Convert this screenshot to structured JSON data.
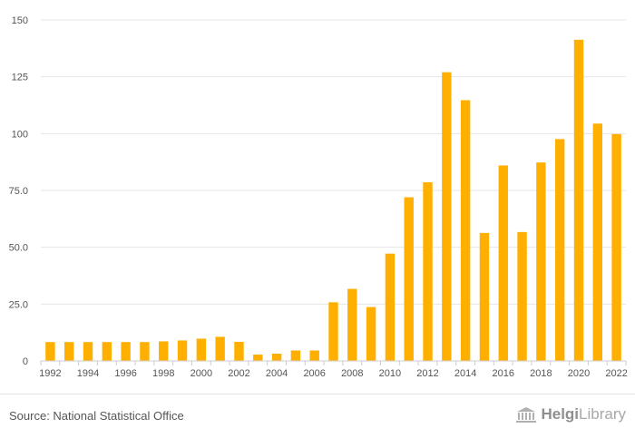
{
  "chart_data": {
    "type": "bar",
    "title": "",
    "xlabel": "",
    "ylabel": "",
    "categories": [
      "1992",
      "1993",
      "1994",
      "1995",
      "1996",
      "1997",
      "1998",
      "1999",
      "2000",
      "2001",
      "2002",
      "2003",
      "2004",
      "2005",
      "2006",
      "2007",
      "2008",
      "2009",
      "2010",
      "2011",
      "2012",
      "2013",
      "2014",
      "2015",
      "2016",
      "2017",
      "2018",
      "2019",
      "2020",
      "2021",
      "2022"
    ],
    "x_tick_labels": [
      "1992",
      "1994",
      "1996",
      "1998",
      "2000",
      "2002",
      "2004",
      "2006",
      "2008",
      "2010",
      "2012",
      "2014",
      "2016",
      "2018",
      "2020",
      "2022"
    ],
    "values": [
      8.3,
      8.3,
      8.3,
      8.3,
      8.3,
      8.3,
      8.6,
      9.0,
      9.8,
      10.6,
      8.4,
      2.8,
      3.2,
      4.6,
      4.6,
      25.8,
      31.7,
      23.7,
      47.2,
      72.0,
      78.6,
      127.0,
      114.7,
      56.3,
      86.0,
      56.7,
      87.3,
      97.6,
      141.3,
      104.4,
      99.8
    ],
    "y_ticks": [
      0,
      25,
      50,
      75,
      100,
      125,
      150
    ],
    "y_tick_labels": [
      "0",
      "25.0",
      "50.0",
      "75.0",
      "100",
      "125",
      "150"
    ],
    "ylim": [
      0,
      150
    ],
    "grid": true,
    "bar_color": "#ffaf00"
  },
  "footer": {
    "source": "Source: National Statistical Office",
    "logo_brand_a": "Helgi",
    "logo_brand_b": "Library"
  }
}
